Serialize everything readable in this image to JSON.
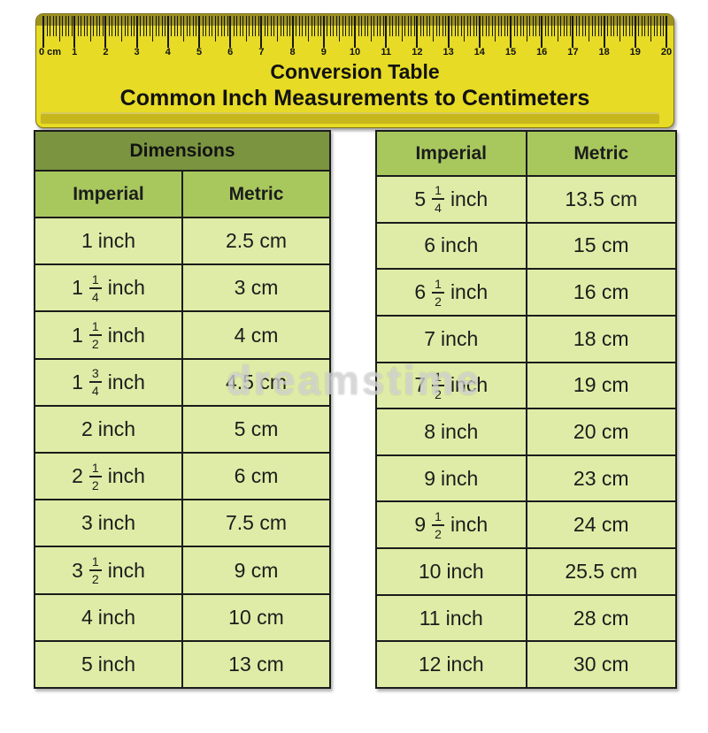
{
  "ruler": {
    "start_label": "0 cm",
    "tick_numbers": [
      "1",
      "2",
      "3",
      "4",
      "5",
      "6",
      "7",
      "8",
      "9",
      "10",
      "11",
      "12",
      "13",
      "14",
      "15",
      "16",
      "17",
      "18",
      "19",
      "20"
    ],
    "title_line1": "Conversion Table",
    "title_line2": "Common Inch Measurements to Centimeters"
  },
  "chart_data": [
    {
      "type": "table",
      "name": "left",
      "title": "Dimensions",
      "columns": [
        "Imperial",
        "Metric"
      ],
      "rows": [
        [
          "1 inch",
          "2.5 cm"
        ],
        [
          "1 1/4 inch",
          "3 cm"
        ],
        [
          "1 1/2 inch",
          "4 cm"
        ],
        [
          "1 3/4 inch",
          "4.5 cm"
        ],
        [
          "2 inch",
          "5 cm"
        ],
        [
          "2 1/2 inch",
          "6 cm"
        ],
        [
          "3 inch",
          "7.5 cm"
        ],
        [
          "3 1/2 inch",
          "9 cm"
        ],
        [
          "4 inch",
          "10 cm"
        ],
        [
          "5 inch",
          "13 cm"
        ]
      ]
    },
    {
      "type": "table",
      "name": "right",
      "title": "",
      "columns": [
        "Imperial",
        "Metric"
      ],
      "rows": [
        [
          "5 1/4 inch",
          "13.5 cm"
        ],
        [
          "6 inch",
          "15 cm"
        ],
        [
          "6 1/2 inch",
          "16 cm"
        ],
        [
          "7 inch",
          "18 cm"
        ],
        [
          "7 1/2 inch",
          "19 cm"
        ],
        [
          "8 inch",
          "20 cm"
        ],
        [
          "9 inch",
          "23 cm"
        ],
        [
          "9 1/2 inch",
          "24 cm"
        ],
        [
          "10 inch",
          "25.5 cm"
        ],
        [
          "11 inch",
          "28 cm"
        ],
        [
          "12 inch",
          "30 cm"
        ]
      ]
    }
  ],
  "watermark": "dreamstime",
  "colors": {
    "ruler_body": "#e7db26",
    "ruler_top_strip": "#9c9120",
    "ruler_bottom_strip": "#c7b61c",
    "table_title_bg": "#7a9440",
    "table_header_bg": "#a8c85e",
    "table_cell_bg": "#dfeca7",
    "border": "#1b1b1b"
  }
}
